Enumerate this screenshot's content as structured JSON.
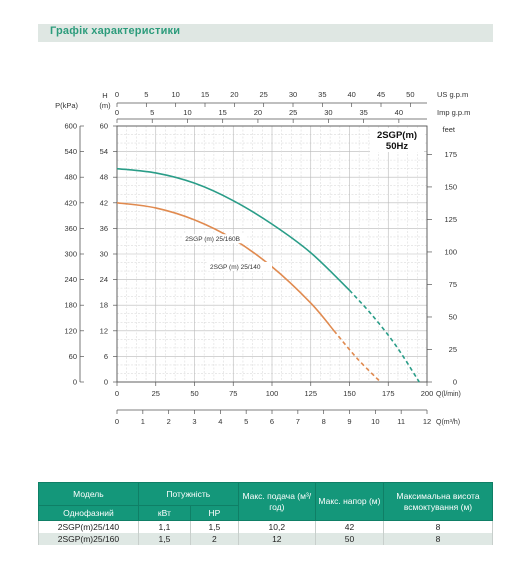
{
  "header": {
    "title": "Графік характеристики"
  },
  "chart_data": {
    "type": "line",
    "model_label_line1": "2SGP(m)",
    "model_label_line2": "50Hz",
    "axes": {
      "head_m": {
        "label": "H",
        "unit": "(m)",
        "ticks": [
          0,
          6,
          12,
          18,
          24,
          30,
          36,
          42,
          48,
          54,
          60
        ],
        "range": [
          0,
          60
        ]
      },
      "pressure_kpa": {
        "label": "P(kPa)",
        "ticks": [
          0,
          60,
          120,
          180,
          240,
          300,
          360,
          420,
          480,
          540,
          600
        ]
      },
      "head_feet": {
        "label": "feet",
        "ticks": [
          0,
          25,
          50,
          75,
          100,
          125,
          150,
          175
        ]
      },
      "flow_us_gpm": {
        "label": "US g.p.m",
        "ticks": [
          0,
          5,
          10,
          15,
          20,
          25,
          30,
          35,
          40,
          45,
          50
        ]
      },
      "flow_imp_gpm": {
        "label": "Imp g.p.m",
        "ticks": [
          0,
          5,
          10,
          15,
          20,
          25,
          30,
          35,
          40
        ]
      },
      "flow_l_min": {
        "label": "Q(l/min)",
        "ticks": [
          0,
          25,
          50,
          75,
          100,
          125,
          150,
          175,
          200
        ],
        "range": [
          0,
          200
        ]
      },
      "flow_m3h": {
        "label": "Q(m³/h)",
        "ticks": [
          0,
          1,
          2,
          3,
          4,
          5,
          6,
          7,
          8,
          9,
          10,
          11,
          12
        ]
      }
    },
    "grid": true,
    "series": [
      {
        "name": "2SGP (m) 25/160B",
        "color": "#2a9d88",
        "x": [
          0,
          25,
          50,
          75,
          100,
          125,
          150,
          165,
          180,
          195
        ],
        "y": [
          50,
          49,
          46.6,
          42.5,
          37,
          30.3,
          21.5,
          15.5,
          8.5,
          0
        ],
        "dashed_from_x": 150
      },
      {
        "name": "2SGP (m) 25/140",
        "color": "#e08a4f",
        "x": [
          0,
          25,
          50,
          75,
          100,
          125,
          140,
          155,
          170
        ],
        "y": [
          42,
          40.8,
          38,
          33.5,
          27,
          18.5,
          12,
          5.5,
          0
        ],
        "dashed_from_x": 130
      }
    ]
  },
  "table": {
    "headers": {
      "model": "Модель",
      "power": "Потужність",
      "max_flow": "Макс. подача (м³/год)",
      "max_head": "Макс. напор (м)",
      "suction": "Максимальна висота всмоктування (м)"
    },
    "subheaders": {
      "phase": "Однофазний",
      "kw": "кВт",
      "hp": "HP"
    },
    "rows": [
      {
        "model": "2SGP(m)25/140",
        "kw": "1,1",
        "hp": "1,5",
        "flow": "10,2",
        "head": "42",
        "suction": "8"
      },
      {
        "model": "2SGP(m)25/160",
        "kw": "1,5",
        "hp": "2",
        "flow": "12",
        "head": "50",
        "suction": "8"
      }
    ]
  }
}
